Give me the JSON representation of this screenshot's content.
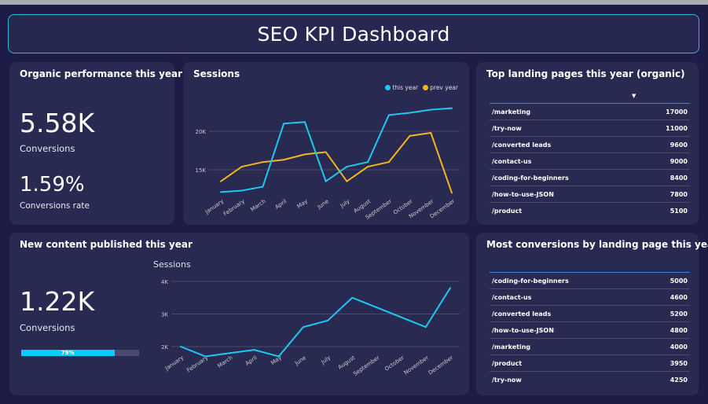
{
  "header": {
    "title": "SEO KPI Dashboard"
  },
  "organic": {
    "title": "Organic performance this year",
    "conversions": "5.58K",
    "conversions_label": "Conversions",
    "rate": "1.59%",
    "rate_label": "Conversions rate"
  },
  "content": {
    "title": "New content published this year",
    "conversions": "1.22K",
    "conversions_label": "Conversions",
    "progress": 0.79,
    "progress_label": "79%"
  },
  "colors": {
    "this_year": "#1ec8f0",
    "prev_year": "#f7b51c",
    "background": "#1e1b47",
    "card": "#282a52",
    "accent_border": "#2bbbd8"
  },
  "top_pages": {
    "title": "Top landing pages this year (organic)",
    "sort_icon": "sort-down-icon",
    "rows": [
      {
        "page": "/marketing",
        "value": "17000"
      },
      {
        "page": "/try-now",
        "value": "11000"
      },
      {
        "page": "/converted leads",
        "value": "9600"
      },
      {
        "page": "/contact-us",
        "value": "9000"
      },
      {
        "page": "/coding-for-beginners",
        "value": "8400"
      },
      {
        "page": "/how-to-use-JSON",
        "value": "7800"
      },
      {
        "page": "/product",
        "value": "5100"
      }
    ]
  },
  "conversions_pages": {
    "title": "Most conversions by landing page this year",
    "rows": [
      {
        "page": "/coding-for-beginners",
        "value": "5000"
      },
      {
        "page": "/contact-us",
        "value": "4600"
      },
      {
        "page": "/converted leads",
        "value": "5200"
      },
      {
        "page": "/how-to-use-JSON",
        "value": "4800"
      },
      {
        "page": "/marketing",
        "value": "4000"
      },
      {
        "page": "/product",
        "value": "3950"
      },
      {
        "page": "/try-now",
        "value": "4250"
      }
    ]
  },
  "chart_data": [
    {
      "type": "line",
      "title": "Sessions",
      "categories": [
        "January",
        "February",
        "March",
        "April",
        "May",
        "June",
        "July",
        "August",
        "September",
        "October",
        "November",
        "December"
      ],
      "series": [
        {
          "name": "this year",
          "values": [
            12100,
            12300,
            12800,
            21000,
            21200,
            13500,
            15400,
            16000,
            22100,
            22400,
            22800,
            23000
          ]
        },
        {
          "name": "prev year",
          "values": [
            13500,
            15400,
            16000,
            16300,
            17000,
            17300,
            13500,
            15400,
            16000,
            19400,
            19800,
            12000
          ]
        }
      ],
      "yticks": [
        {
          "v": 15000,
          "label": "15K"
        },
        {
          "v": 20000,
          "label": "20K"
        }
      ],
      "legend": "top-right",
      "grid": true
    },
    {
      "type": "line",
      "title": "Sessions",
      "categories": [
        "January",
        "February",
        "March",
        "April",
        "May",
        "June",
        "July",
        "August",
        "September",
        "October",
        "November",
        "December"
      ],
      "series": [
        {
          "values": [
            2000,
            1700,
            1800,
            1900,
            1700,
            2600,
            2800,
            3500,
            3200,
            2900,
            2600,
            3800
          ]
        }
      ],
      "yticks": [
        {
          "v": 2000,
          "label": "2K"
        },
        {
          "v": 3000,
          "label": "3K"
        },
        {
          "v": 4000,
          "label": "4K"
        }
      ],
      "grid": true
    }
  ]
}
